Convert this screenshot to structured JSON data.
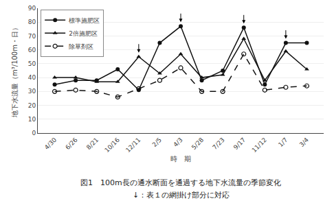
{
  "chart_data": {
    "type": "line",
    "title": "図1　100m長の通水断面を通過する地下水流量の季節変化",
    "subtitle": "↓：表１の網掛け部分に対応",
    "x_label": "時　期",
    "y_label": "地下水流量（m³/100m・日）",
    "categories": [
      "4/30",
      "6/26",
      "8/21",
      "10/16",
      "12/11",
      "2/5",
      "4/3",
      "5/28",
      "7/23",
      "9/17",
      "11/12",
      "1/7",
      "3/4"
    ],
    "series": [
      {
        "name": "標準施肥区",
        "color": "#111111",
        "marker": "circle",
        "line_style": "solid",
        "values": [
          35,
          38,
          38,
          46,
          31,
          65,
          77,
          38,
          45,
          76,
          35,
          65,
          65
        ]
      },
      {
        "name": "2倍施肥区",
        "color": "#111111",
        "marker": "triangle-up",
        "line_style": "solid",
        "values": [
          40,
          40,
          37,
          37,
          55,
          43,
          57,
          40,
          42,
          68,
          38,
          59,
          46
        ]
      },
      {
        "name": "除草剤区",
        "color": "#111111",
        "marker": "circle-open",
        "line_style": "dash",
        "values": [
          30,
          31,
          30,
          26,
          32,
          38,
          47,
          30,
          30,
          57,
          31,
          33,
          34
        ]
      }
    ],
    "arrow_categories": [
      "12/11",
      "4/3",
      "9/17",
      "1/7"
    ],
    "ylim": [
      0,
      90
    ],
    "yticks": [
      0,
      10,
      20,
      30,
      40,
      50,
      60,
      70,
      80,
      90
    ],
    "grid": "y",
    "legend": "upper left"
  }
}
